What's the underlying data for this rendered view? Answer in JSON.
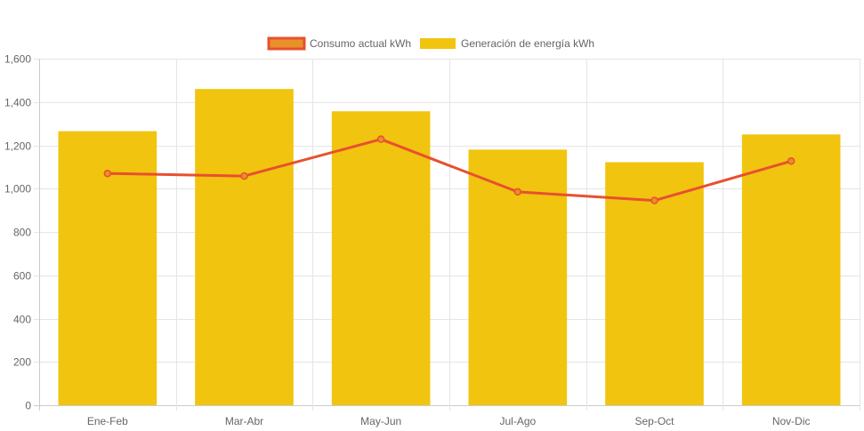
{
  "chart_data": {
    "type": "bar",
    "categories": [
      "Ene-Feb",
      "Mar-Abr",
      "May-Jun",
      "Jul-Ago",
      "Sep-Oct",
      "Nov-Dic"
    ],
    "series": [
      {
        "name": "Consumo actual kWh",
        "type": "line",
        "color": "#E8502F",
        "fill_color": "#E8902A",
        "values": [
          1070,
          1058,
          1228,
          985,
          945,
          1127
        ]
      },
      {
        "name": "Generación de energía kWh",
        "type": "bar",
        "color": "#F1C40F",
        "values": [
          1265,
          1460,
          1357,
          1180,
          1122,
          1250
        ]
      }
    ],
    "ylim": [
      0,
      1600
    ],
    "yticks": [
      "0",
      "200",
      "400",
      "600",
      "800",
      "1,000",
      "1,200",
      "1,400",
      "1,600"
    ],
    "ytick_values": [
      0,
      200,
      400,
      600,
      800,
      1000,
      1200,
      1400,
      1600
    ],
    "grid": true,
    "legend_position": "top"
  }
}
